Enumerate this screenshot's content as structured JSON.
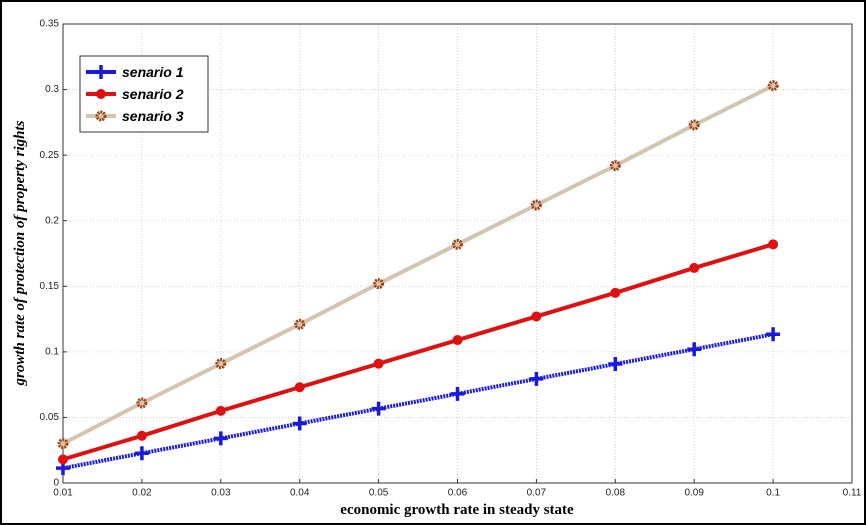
{
  "chart_data": {
    "type": "line",
    "xlabel": "economic growth rate in steady state",
    "ylabel": "growth rate of protection of property rights",
    "x": [
      0.01,
      0.02,
      0.03,
      0.04,
      0.05,
      0.06,
      0.07,
      0.08,
      0.09,
      0.1
    ],
    "series": [
      {
        "name": "senario 1",
        "color": "#1a1adf",
        "marker": "plus",
        "values": [
          0.0113,
          0.0227,
          0.034,
          0.0454,
          0.0567,
          0.068,
          0.0794,
          0.0907,
          0.102,
          0.1134
        ]
      },
      {
        "name": "senario 2",
        "color": "#e01010",
        "marker": "circle",
        "values": [
          0.018,
          0.036,
          0.055,
          0.073,
          0.091,
          0.109,
          0.127,
          0.145,
          0.164,
          0.182
        ]
      },
      {
        "name": "senario 3",
        "color": "#d6c3b0",
        "marker": "ring",
        "marker_color": "#a0420f",
        "values": [
          0.03,
          0.061,
          0.091,
          0.121,
          0.152,
          0.182,
          0.212,
          0.242,
          0.273,
          0.303
        ]
      }
    ],
    "xlim": [
      0.01,
      0.11
    ],
    "xticks": [
      0.01,
      0.02,
      0.03,
      0.04,
      0.05,
      0.06,
      0.07,
      0.08,
      0.09,
      0.1,
      0.11
    ],
    "ylim": [
      0,
      0.35
    ],
    "yticks": [
      0,
      0.05,
      0.1,
      0.15,
      0.2,
      0.25,
      0.3,
      0.35
    ],
    "grid": true,
    "legend": "upper left"
  }
}
